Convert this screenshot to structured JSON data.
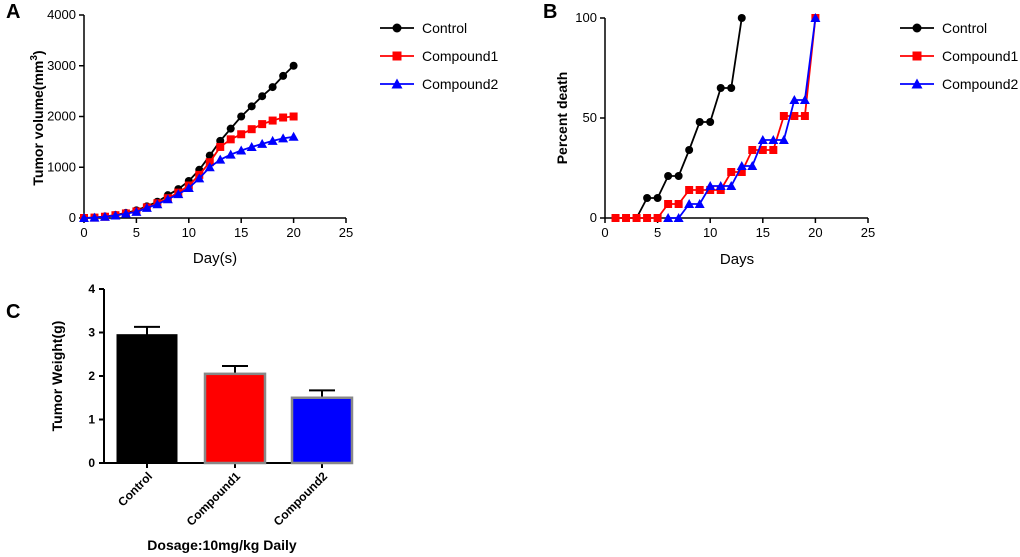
{
  "chart_data": [
    {
      "panel": "A",
      "type": "line",
      "xlabel": "Day(s)",
      "ylabel": "Tumor volume(mm³)",
      "ylabel_parts": [
        "Tumor volume(mm",
        "3",
        ")"
      ],
      "xlim": [
        0,
        25
      ],
      "ylim": [
        0,
        4000
      ],
      "xticks": [
        "0",
        "5",
        "10",
        "15",
        "20",
        "25"
      ],
      "yticks": [
        "0",
        "1000",
        "2000",
        "3000",
        "4000"
      ],
      "grid": false,
      "legend": "right",
      "x": [
        0,
        1,
        2,
        3,
        4,
        5,
        6,
        7,
        8,
        9,
        10,
        11,
        12,
        13,
        14,
        15,
        16,
        17,
        18,
        19,
        20
      ],
      "series": [
        {
          "name": "Control",
          "color": "#000000",
          "marker": "circle",
          "values": [
            0,
            10,
            30,
            60,
            100,
            150,
            230,
            320,
            450,
            570,
            730,
            950,
            1230,
            1520,
            1760,
            2000,
            2200,
            2400,
            2580,
            2800,
            3000
          ]
        },
        {
          "name": "Compound1",
          "color": "#ff0000",
          "marker": "square",
          "values": [
            0,
            8,
            25,
            55,
            90,
            130,
            210,
            290,
            390,
            500,
            640,
            850,
            1100,
            1400,
            1550,
            1650,
            1750,
            1850,
            1920,
            1980,
            2000
          ]
        },
        {
          "name": "Compound2",
          "color": "#0000ff",
          "marker": "triangle",
          "values": [
            0,
            8,
            25,
            50,
            85,
            120,
            200,
            270,
            370,
            470,
            590,
            780,
            1000,
            1150,
            1250,
            1330,
            1400,
            1460,
            1520,
            1570,
            1600
          ]
        }
      ]
    },
    {
      "panel": "B",
      "type": "line",
      "xlabel": "Days",
      "ylabel": "Percent death",
      "xlim": [
        0,
        25
      ],
      "ylim": [
        0,
        100
      ],
      "xticks": [
        "0",
        "5",
        "10",
        "15",
        "20",
        "25"
      ],
      "yticks": [
        "0",
        "50",
        "100"
      ],
      "grid": false,
      "legend": "right",
      "series": [
        {
          "name": "Control",
          "color": "#000000",
          "marker": "circle",
          "x": [
            1,
            2,
            3,
            4,
            5,
            6,
            7,
            8,
            9,
            10,
            11,
            12,
            13
          ],
          "values": [
            0,
            0,
            0,
            10,
            10,
            21,
            21,
            34,
            48,
            48,
            65,
            65,
            100
          ]
        },
        {
          "name": "Compound1",
          "color": "#ff0000",
          "marker": "square",
          "x": [
            1,
            2,
            3,
            4,
            5,
            6,
            7,
            8,
            9,
            10,
            11,
            12,
            13,
            14,
            15,
            16,
            17,
            18,
            19,
            20
          ],
          "values": [
            0,
            0,
            0,
            0,
            0,
            7,
            7,
            14,
            14,
            14,
            14,
            23,
            23,
            34,
            34,
            34,
            51,
            51,
            51,
            100
          ]
        },
        {
          "name": "Compound2",
          "color": "#0000ff",
          "marker": "triangle",
          "x": [
            6,
            7,
            8,
            9,
            10,
            11,
            12,
            13,
            14,
            15,
            16,
            17,
            18,
            19,
            20
          ],
          "values": [
            0,
            0,
            7,
            7,
            16,
            16,
            16,
            26,
            26,
            39,
            39,
            39,
            59,
            59,
            100
          ]
        }
      ]
    },
    {
      "panel": "C",
      "type": "bar",
      "xlabel": "Dosage:10mg/kg Daily",
      "ylabel": "Tumor Weight(g)",
      "ylim": [
        0,
        4
      ],
      "yticks": [
        "0",
        "1",
        "2",
        "3",
        "4"
      ],
      "grid": false,
      "categories": [
        "Control",
        "Compound1",
        "Compound2"
      ],
      "values": [
        2.95,
        2.05,
        1.5
      ],
      "errors": [
        0.18,
        0.18,
        0.17
      ],
      "colors": [
        "#000000",
        "#ff0000",
        "#0000ff"
      ]
    }
  ]
}
